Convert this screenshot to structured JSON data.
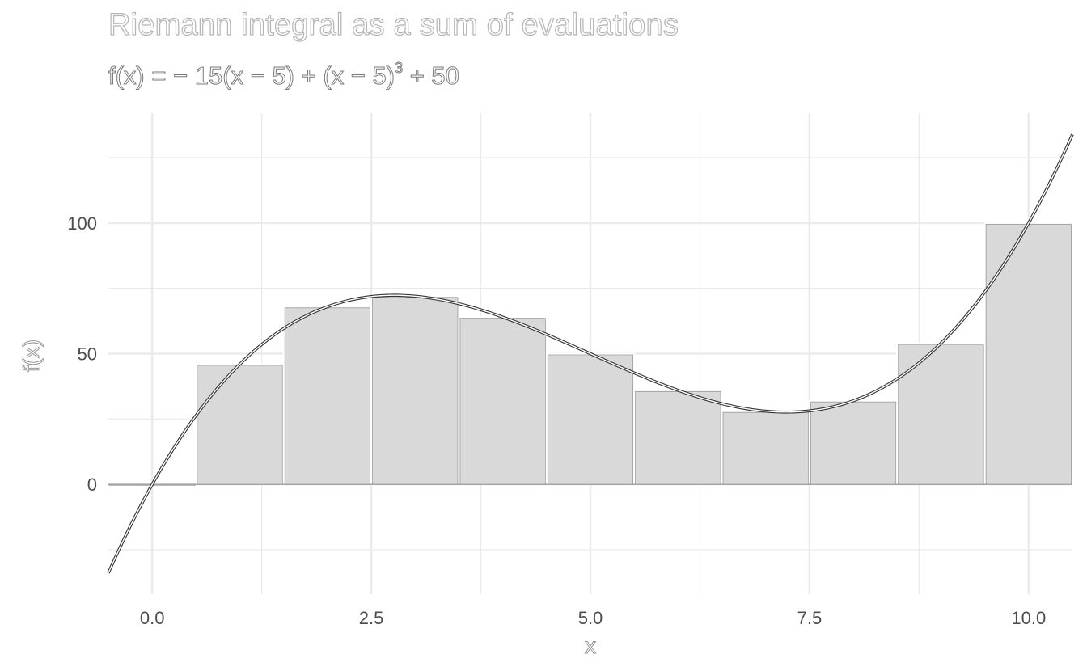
{
  "chart_data": {
    "type": "bar",
    "title": "Riemann integral as a sum of evaluations",
    "subtitle": "f(x) = − 15(x − 5) + (x − 5)^3 + 50",
    "subtitle_parts": {
      "base": "f(x) = − 15(x − 5) + (x − 5)",
      "exponent": "3",
      "tail": " + 50"
    },
    "xlabel": "x",
    "ylabel": "f(x)",
    "xlim": [
      -0.5,
      10.5
    ],
    "ylim": [
      -42,
      142
    ],
    "x_ticks": [
      0,
      2.5,
      5,
      7.5,
      10
    ],
    "x_tick_labels": [
      "0.0",
      "2.5",
      "5.0",
      "7.5",
      "10.0"
    ],
    "y_ticks": [
      0,
      50,
      100
    ],
    "y_tick_labels": [
      "0",
      "50",
      "100"
    ],
    "grid": true,
    "bars": {
      "x": [
        0,
        1,
        2,
        3,
        4,
        5,
        6,
        7,
        8,
        9,
        10
      ],
      "width": 1,
      "values": [
        0,
        46,
        68,
        72,
        64,
        50,
        36,
        28,
        32,
        54,
        100
      ]
    },
    "curve": {
      "function": "-15*(x-5) + (x-5)^3 + 50",
      "domain": [
        -0.5,
        10.5
      ]
    },
    "colors": {
      "bar_fill": "#d9d9d9",
      "bar_outline": "#ffffff",
      "curve": "#333333",
      "grid": "#ebebeb"
    }
  }
}
